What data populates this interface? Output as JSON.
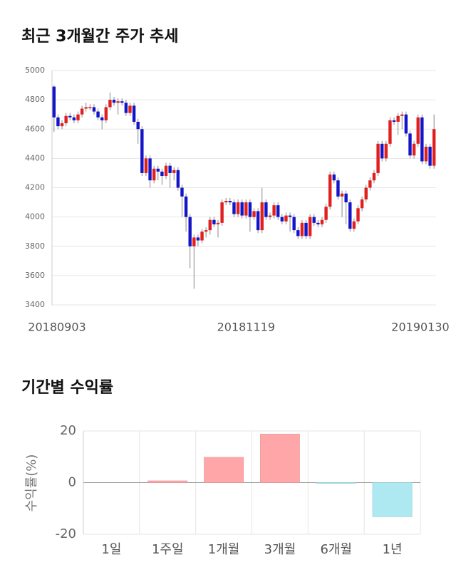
{
  "charts": [
    {
      "type": "candlestick",
      "title": "최근 3개월간 주가 추세",
      "categories": [
        "20180903",
        null,
        null,
        null,
        null,
        null,
        null,
        null,
        null,
        null,
        null,
        null,
        null,
        null,
        null,
        null,
        null,
        null,
        null,
        null,
        null,
        null,
        null,
        null,
        null,
        null,
        null,
        null,
        null,
        null,
        null,
        null,
        null,
        null,
        null,
        null,
        null,
        null,
        null,
        null,
        null,
        null,
        null,
        null,
        null,
        null,
        null,
        null,
        "20181119",
        null,
        null,
        null,
        null,
        null,
        null,
        null,
        null,
        null,
        null,
        null,
        null,
        null,
        null,
        null,
        null,
        null,
        null,
        null,
        null,
        null,
        null,
        null,
        null,
        null,
        null,
        null,
        null,
        null,
        null,
        null,
        null,
        null,
        null,
        null,
        null,
        null,
        null,
        null,
        null,
        null,
        null,
        null,
        null,
        null,
        null,
        "20190130"
      ],
      "open": [
        4890,
        4680,
        4620,
        4640,
        4690,
        4680,
        4660,
        4700,
        4740,
        4750,
        4750,
        4720,
        4680,
        4660,
        4750,
        4800,
        4780,
        4790,
        4780,
        4710,
        4760,
        4650,
        4600,
        4300,
        4400,
        4250,
        4330,
        4310,
        4280,
        4350,
        4300,
        4320,
        4200,
        4140,
        4000,
        3800,
        3860,
        3840,
        3900,
        3910,
        3980,
        3950,
        3960,
        4100,
        4110,
        4100,
        4020,
        4100,
        4010,
        4100,
        4000,
        4040,
        3910,
        4100,
        4000,
        4010,
        4080,
        4000,
        3970,
        4010,
        4000,
        3910,
        3870,
        3960,
        3870,
        4000,
        3960,
        3950,
        3980,
        4070,
        4290,
        4250,
        4140,
        4160,
        4100,
        3920,
        3970,
        4060,
        4120,
        4200,
        4250,
        4300,
        4500,
        4400,
        4500,
        4660,
        4650,
        4690,
        4700,
        4570,
        4420,
        4500,
        4680,
        4380,
        4480,
        4350
      ],
      "high": [
        4900,
        4700,
        4660,
        4710,
        4710,
        4700,
        4720,
        4760,
        4780,
        4770,
        4770,
        4740,
        4700,
        4770,
        4850,
        4820,
        4810,
        4810,
        4800,
        4780,
        4780,
        4670,
        4620,
        4420,
        4420,
        4350,
        4350,
        4330,
        4370,
        4370,
        4340,
        4340,
        4220,
        4160,
        4020,
        3880,
        3880,
        3920,
        3930,
        4000,
        4000,
        3980,
        4120,
        4130,
        4130,
        4120,
        4120,
        4120,
        4120,
        4120,
        4060,
        4060,
        4200,
        4120,
        4030,
        4100,
        4100,
        4020,
        4030,
        4030,
        4020,
        3930,
        3980,
        3980,
        4020,
        4020,
        3980,
        4000,
        4090,
        4310,
        4310,
        4270,
        4180,
        4180,
        4120,
        3990,
        4080,
        4140,
        4220,
        4270,
        4320,
        4520,
        4520,
        4520,
        4680,
        4680,
        4710,
        4720,
        4720,
        4590,
        4520,
        4700,
        4700,
        4500,
        4500,
        4700
      ],
      "low": [
        4580,
        4600,
        4600,
        4620,
        4660,
        4640,
        4640,
        4680,
        4720,
        4730,
        4700,
        4660,
        4600,
        4640,
        4730,
        4760,
        4700,
        4760,
        4690,
        4690,
        4630,
        4500,
        4280,
        4280,
        4200,
        4230,
        4250,
        4220,
        4260,
        4200,
        4250,
        4180,
        4000,
        3900,
        3650,
        3510,
        3800,
        3820,
        3860,
        3880,
        3930,
        3860,
        3940,
        4080,
        4080,
        4000,
        4000,
        3990,
        3990,
        3900,
        3980,
        3890,
        3890,
        3980,
        3980,
        3990,
        3980,
        3950,
        3950,
        3900,
        3890,
        3850,
        3850,
        3850,
        3850,
        3940,
        3930,
        3930,
        3960,
        4050,
        4230,
        4120,
        4000,
        3950,
        3900,
        3900,
        3950,
        4040,
        4100,
        4180,
        4230,
        4280,
        4380,
        4380,
        4480,
        4630,
        4560,
        4600,
        4550,
        4400,
        4400,
        4480,
        4360,
        4360,
        4330,
        4330
      ],
      "close": [
        4680,
        4620,
        4640,
        4690,
        4680,
        4660,
        4700,
        4740,
        4750,
        4750,
        4720,
        4680,
        4660,
        4750,
        4800,
        4780,
        4790,
        4780,
        4710,
        4760,
        4650,
        4600,
        4300,
        4400,
        4250,
        4330,
        4310,
        4280,
        4350,
        4300,
        4320,
        4200,
        4140,
        4000,
        3800,
        3860,
        3840,
        3900,
        3910,
        3980,
        3950,
        3960,
        4100,
        4110,
        4100,
        4020,
        4100,
        4010,
        4100,
        4000,
        4040,
        3910,
        4100,
        4000,
        4010,
        4080,
        4000,
        3970,
        4010,
        4000,
        3910,
        3870,
        3960,
        3870,
        4000,
        3960,
        3950,
        3980,
        4070,
        4290,
        4250,
        4140,
        4160,
        4100,
        3920,
        3970,
        4060,
        4120,
        4200,
        4250,
        4300,
        4500,
        4400,
        4500,
        4660,
        4650,
        4690,
        4700,
        4570,
        4420,
        4500,
        4680,
        4380,
        4480,
        4350,
        4600
      ],
      "up_color": "#e0201e",
      "down_color": "#1414c8",
      "ylim": [
        3400,
        5000
      ],
      "yticks": [
        3400,
        3600,
        3800,
        4000,
        4200,
        4400,
        4600,
        4800,
        5000
      ],
      "grid": true
    },
    {
      "type": "bar",
      "title": "기간별 수익률",
      "ylabel": "수익률(%)",
      "categories": [
        "1일",
        "1주일",
        "1개월",
        "3개월",
        "6개월",
        "1년"
      ],
      "values": [
        0,
        0.7,
        9.8,
        18.8,
        -0.3,
        -13.2
      ],
      "color": "#ffa6a8",
      "negative_color": "#aee9f2",
      "ylim": [
        -20,
        20
      ],
      "yticks": [
        -20,
        0,
        20
      ],
      "grid": true
    }
  ]
}
